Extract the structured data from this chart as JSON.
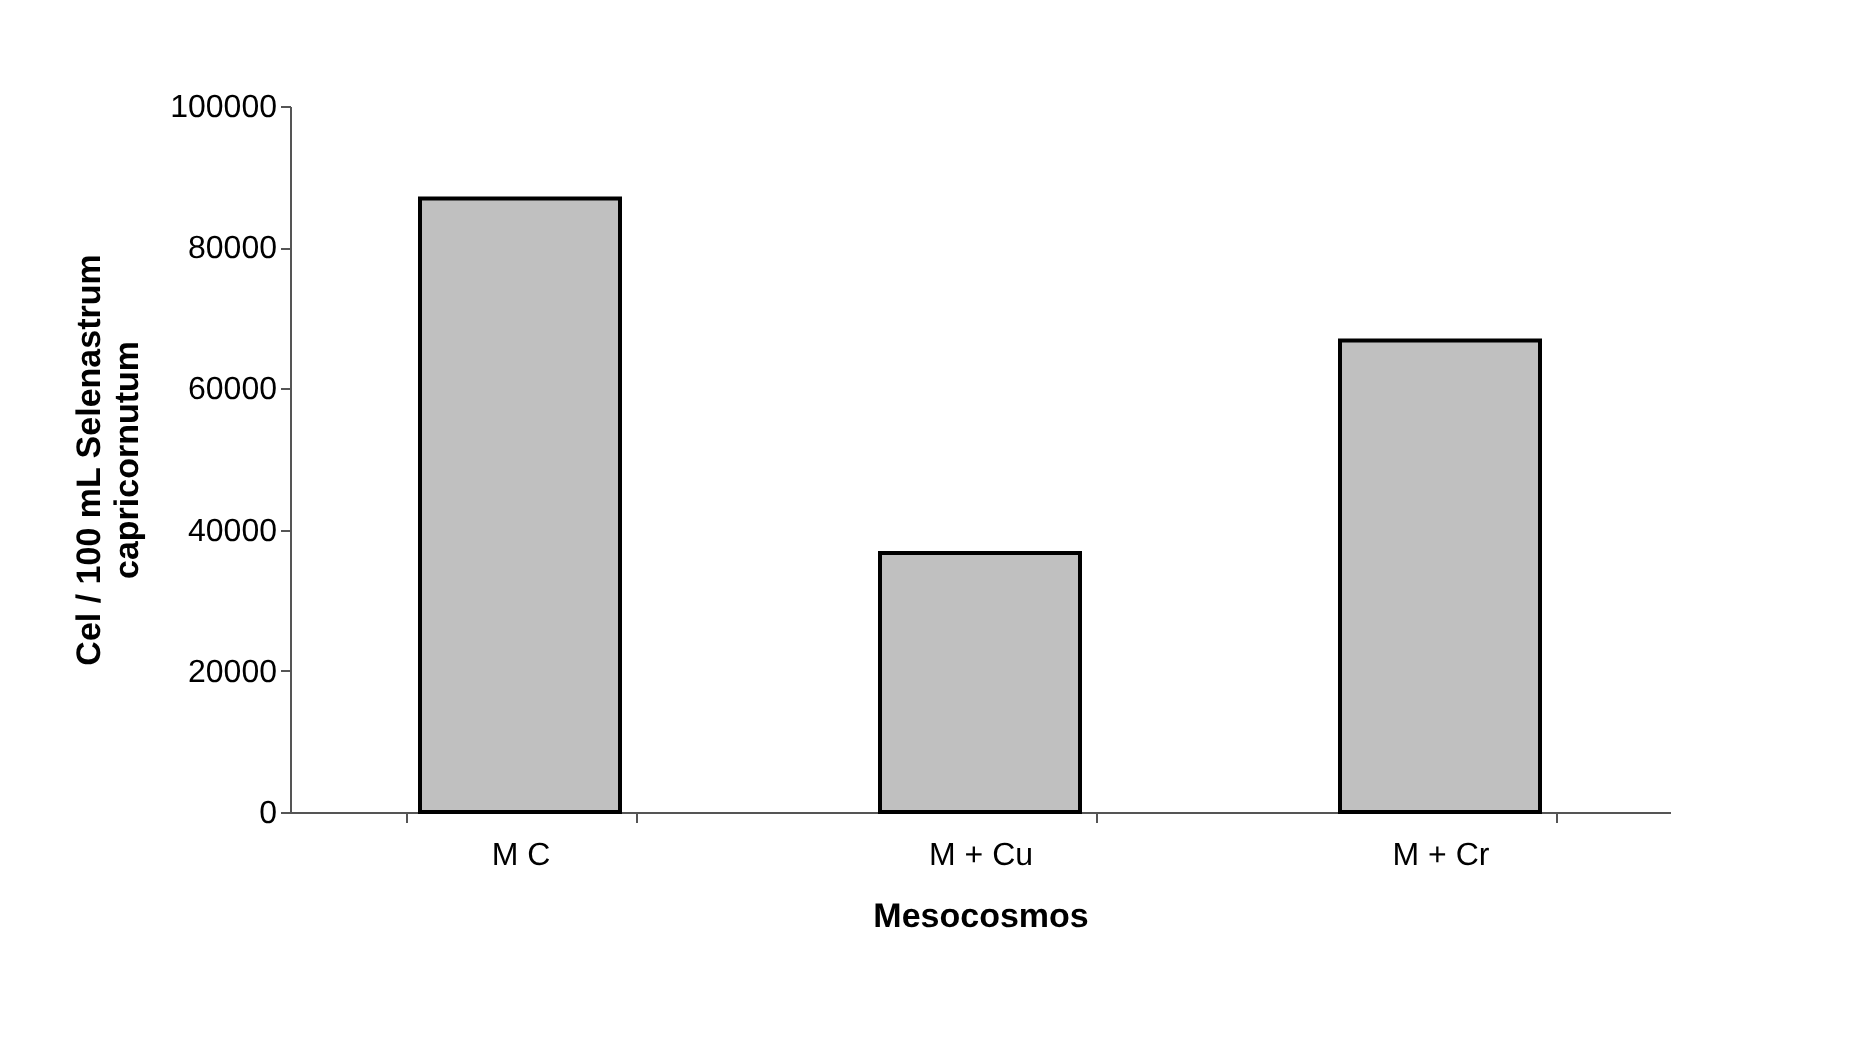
{
  "chart_data": {
    "type": "bar",
    "xlabel": "Mesocosmos",
    "ylabel": "Cel / 100 mL Selenastrum capricornutum",
    "categories": [
      "M C",
      "M + Cu",
      "M + Cr"
    ],
    "values": [
      86900,
      36700,
      66800
    ],
    "color": "#c0c0c0",
    "ylim": [
      0,
      100000
    ],
    "yticks": [
      0,
      20000,
      40000,
      60000,
      80000,
      100000
    ],
    "grid": false
  }
}
